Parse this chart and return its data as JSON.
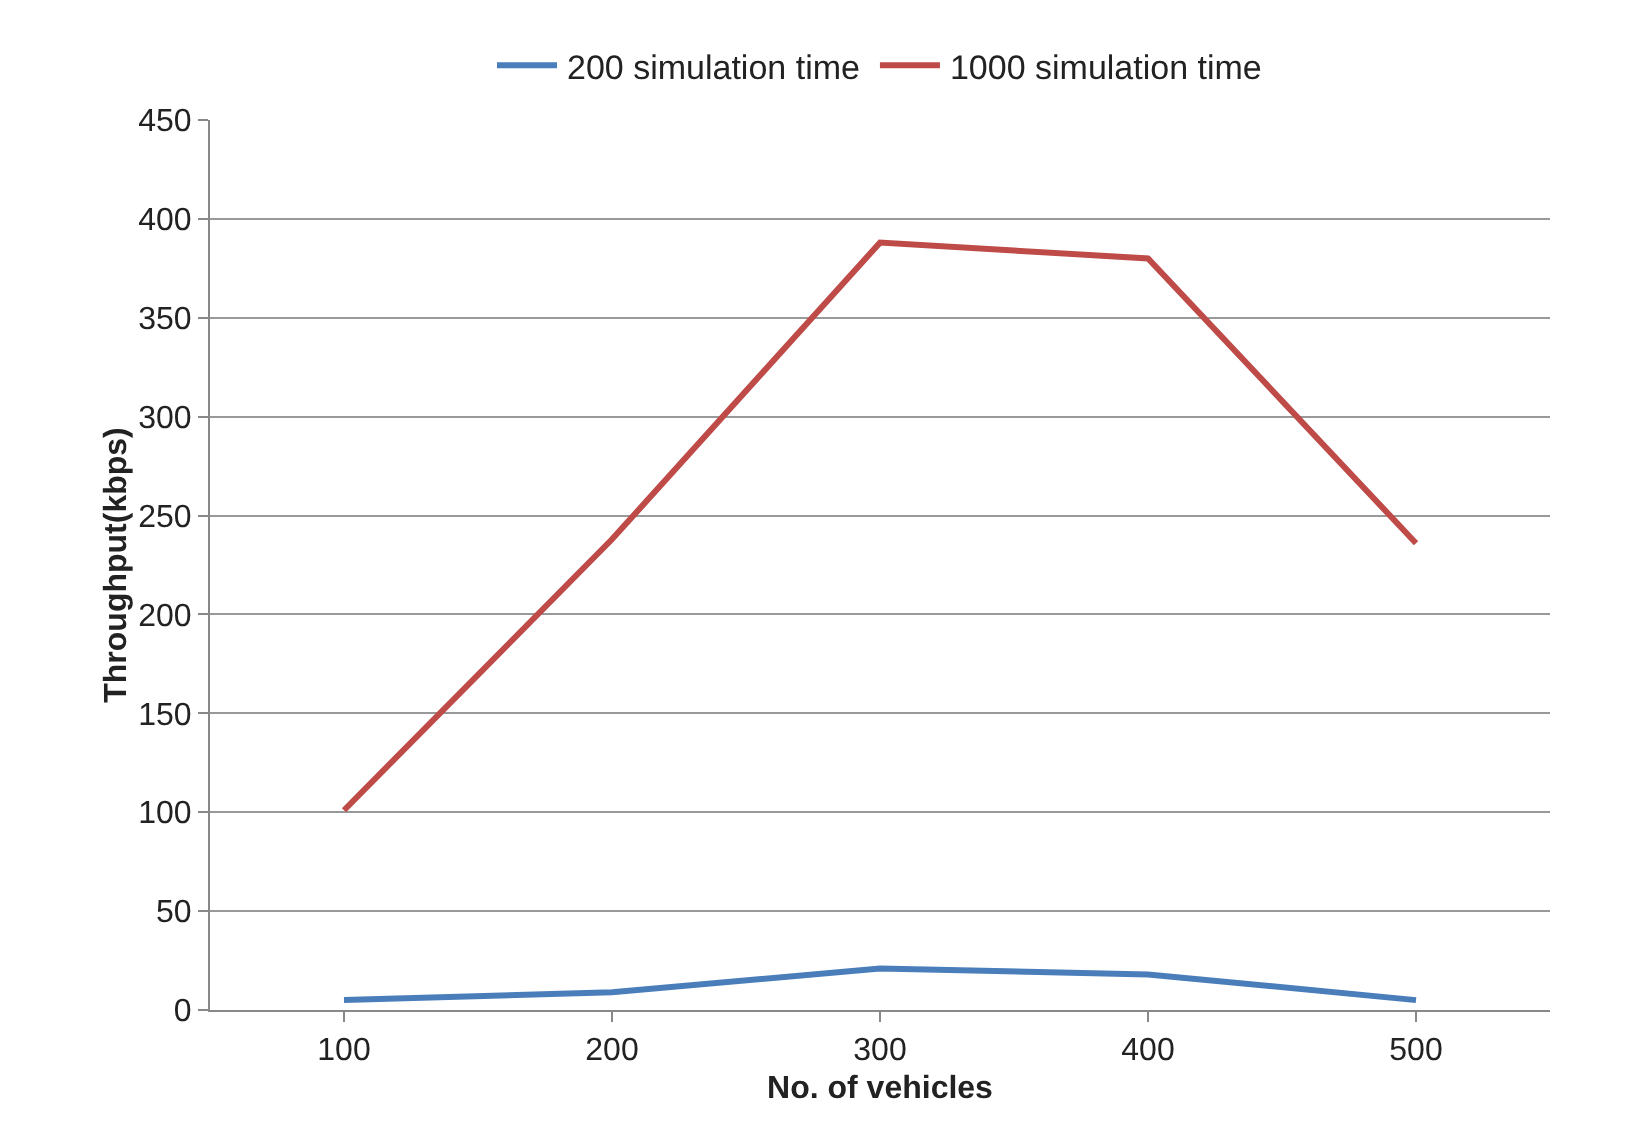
{
  "chart_data": {
    "type": "line",
    "xlabel": "No. of vehicles",
    "ylabel": "Throughput(kbps)",
    "categories": [
      "100",
      "200",
      "300",
      "400",
      "500"
    ],
    "series": [
      {
        "name": "200 simulation time",
        "color": "#4a7ebb",
        "values": [
          5,
          9,
          21,
          18,
          5
        ]
      },
      {
        "name": "1000 simulation time",
        "color": "#be4b48",
        "values": [
          101,
          238,
          388,
          380,
          236
        ]
      }
    ],
    "ylim": [
      0,
      450
    ],
    "yticks": [
      0,
      50,
      100,
      150,
      200,
      250,
      300,
      350,
      400,
      450
    ],
    "grid": "y",
    "legend": "top",
    "marker": "none",
    "line_style": "solid"
  }
}
